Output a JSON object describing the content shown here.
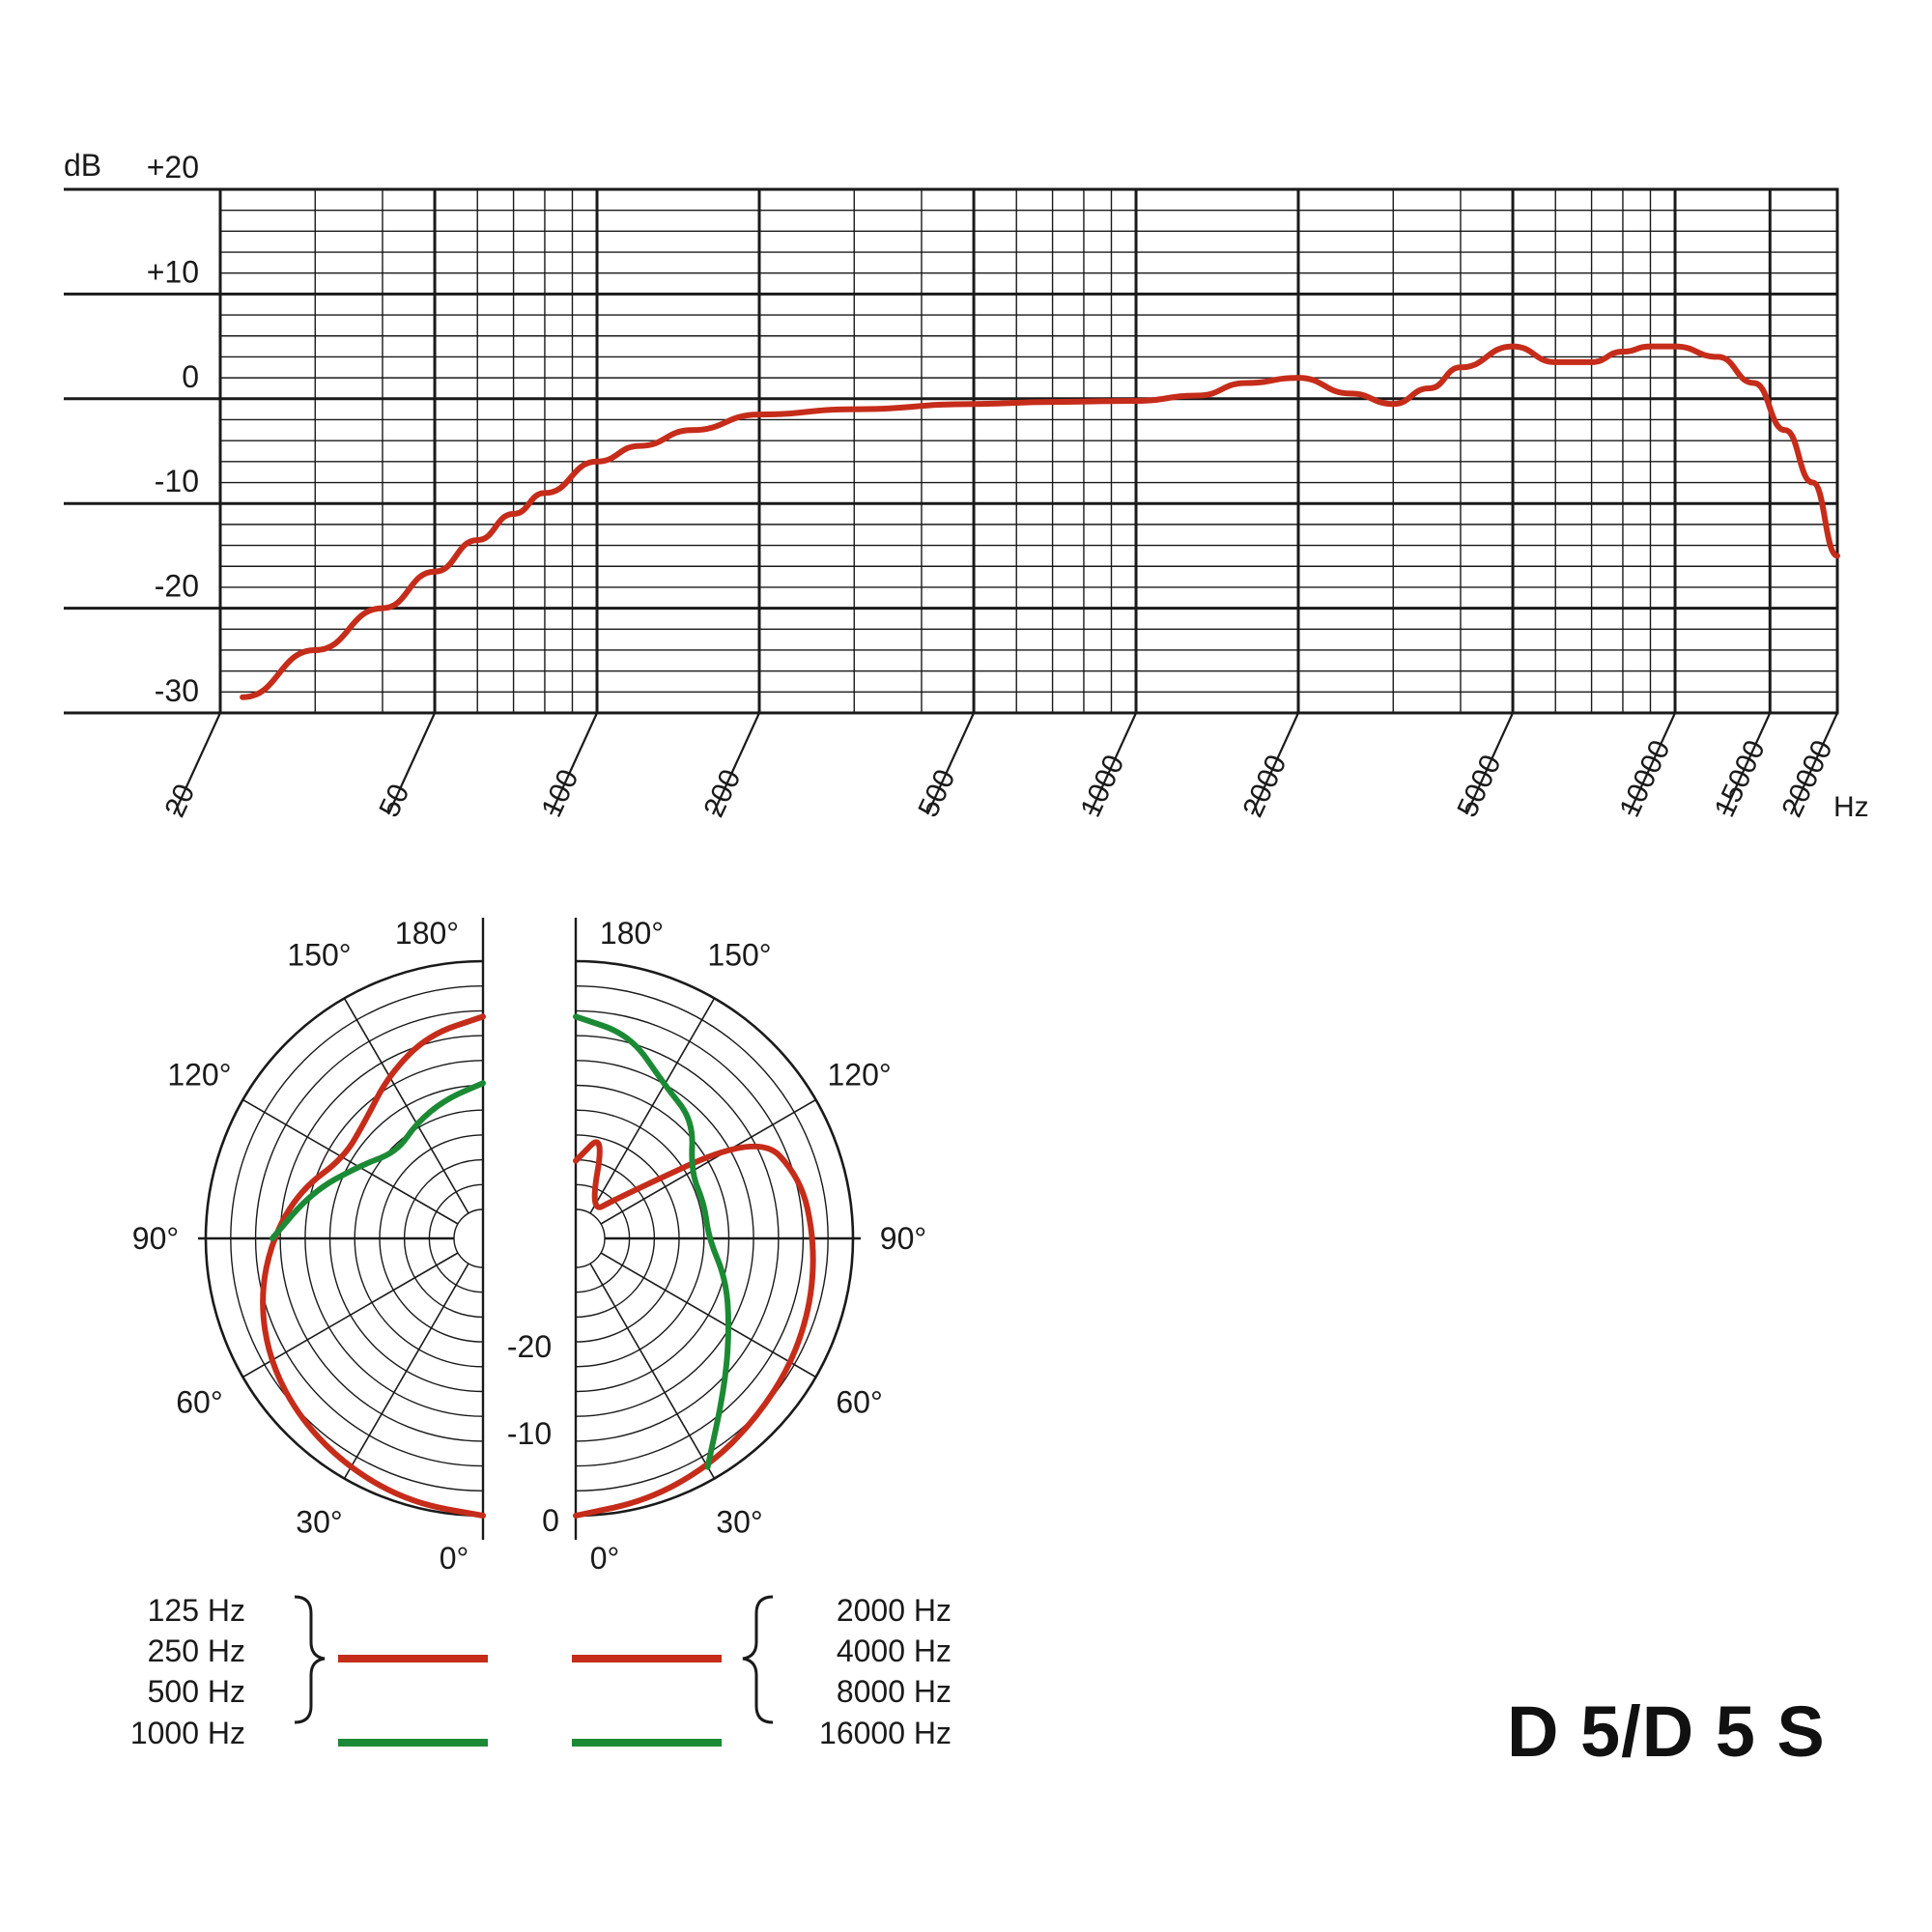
{
  "model_label": "D 5/D 5 S",
  "colors": {
    "red": "#c62c1a",
    "green": "#1c8a35",
    "grid": "#1a1a1a"
  },
  "chart_data": [
    {
      "type": "line",
      "y_unit_label": "dB",
      "x_unit_label": "Hz",
      "x_scale": "log",
      "xlim": [
        20,
        20000
      ],
      "ylim": [
        -30,
        20
      ],
      "y_ticks": [
        "+20",
        "+10",
        "0",
        "-10",
        "-20",
        "-30"
      ],
      "x_ticks": [
        "20",
        "50",
        "100",
        "200",
        "500",
        "1000",
        "2000",
        "5000",
        "10000",
        "15000",
        "20000"
      ],
      "series": [
        {
          "color": "#c62c1a",
          "x": [
            22,
            30,
            40,
            50,
            60,
            70,
            80,
            100,
            120,
            150,
            200,
            300,
            500,
            700,
            1000,
            1300,
            1600,
            2000,
            2500,
            3000,
            3500,
            4000,
            5000,
            6000,
            7000,
            8000,
            9000,
            10000,
            12000,
            14000,
            16000,
            18000,
            20000
          ],
          "y": [
            -28.5,
            -24,
            -20,
            -16.5,
            -13.5,
            -11,
            -9,
            -6,
            -4.5,
            -3,
            -1.5,
            -1,
            -0.5,
            -0.3,
            -0.2,
            0.3,
            1.5,
            2,
            0.5,
            -0.5,
            1,
            3,
            5,
            3.5,
            3.5,
            4.5,
            5,
            5,
            4,
            1.5,
            -3,
            -8,
            -15
          ]
        }
      ]
    },
    {
      "type": "polar",
      "angle_labels_left": [
        "180°",
        "150°",
        "120°",
        "90°",
        "60°",
        "30°",
        "0°"
      ],
      "angle_labels_right": [
        "180°",
        "150°",
        "120°",
        "90°",
        "60°",
        "30°",
        "0°"
      ],
      "db_labels": [
        "-20",
        "-10",
        "0"
      ],
      "legend_left": [
        {
          "label": "125 Hz",
          "color": "#c62c1a"
        },
        {
          "label": "250 Hz",
          "color": "#c62c1a"
        },
        {
          "label": "500 Hz",
          "color": "#c62c1a"
        },
        {
          "label": "1000 Hz",
          "color": "#1c8a35"
        }
      ],
      "legend_right": [
        {
          "label": "2000 Hz",
          "color": "#c62c1a"
        },
        {
          "label": "4000 Hz",
          "color": "#c62c1a"
        },
        {
          "label": "8000 Hz",
          "color": "#c62c1a"
        },
        {
          "label": "16000 Hz",
          "color": "#1c8a35"
        }
      ],
      "left_red": {
        "angle": [
          0,
          15,
          30,
          45,
          60,
          75,
          90,
          105,
          120,
          135,
          150,
          165,
          180
        ],
        "db": [
          0,
          -0.3,
          -1,
          -1.8,
          -2.8,
          -4.2,
          -6,
          -8,
          -10.5,
          -10,
          -8,
          -6,
          -5
        ]
      },
      "left_green": {
        "angle": [
          90,
          105,
          120,
          135,
          150,
          165,
          180
        ],
        "db": [
          -6,
          -9,
          -12,
          -14,
          -13,
          -12,
          -11
        ]
      },
      "right_red": {
        "angle": [
          0,
          15,
          30,
          45,
          60,
          75,
          90,
          105,
          120,
          135,
          150,
          165,
          180
        ],
        "db": [
          0,
          -0.5,
          -1.2,
          -2,
          -2.5,
          -3,
          -3.5,
          -4,
          -6,
          -20,
          -25,
          -15,
          -18
        ]
      },
      "right_green": {
        "angle": [
          30,
          45,
          60,
          75,
          90,
          105,
          120,
          135,
          150,
          165,
          180
        ],
        "db": [
          -1.2,
          -6,
          -9,
          -11,
          -13,
          -13,
          -13,
          -10,
          -9,
          -6,
          -5
        ]
      }
    }
  ]
}
